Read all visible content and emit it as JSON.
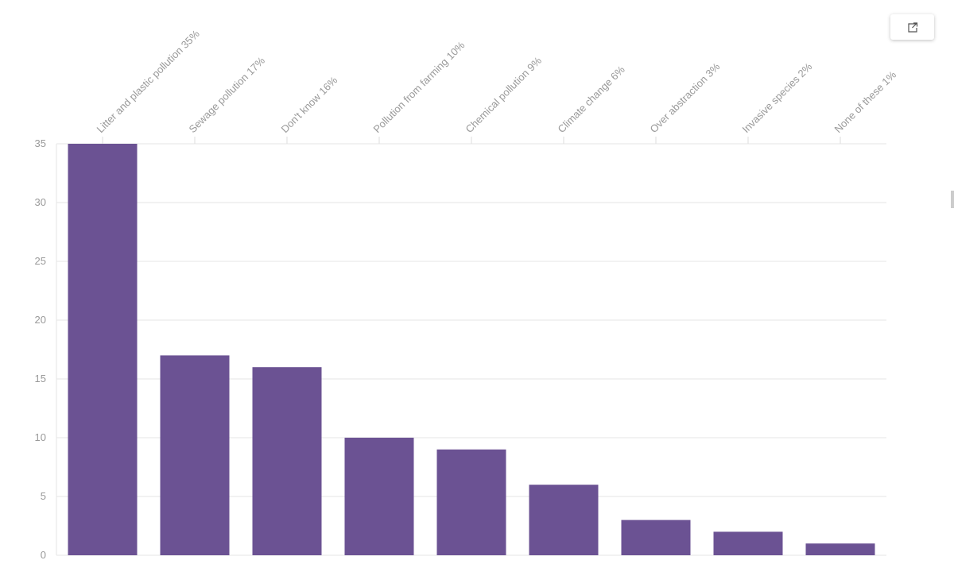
{
  "chart_data": {
    "type": "bar",
    "categories": [
      "Litter and plastic pollution 35%",
      "Sewage pollution 17%",
      "Don't know 16%",
      "Pollution from farming 10%",
      "Chemical pollution 9%",
      "Climate change 6%",
      "Over abstraction 3%",
      "Invasive species 2%",
      "None of these 1%"
    ],
    "values": [
      35,
      17,
      16,
      10,
      9,
      6,
      3,
      2,
      1
    ],
    "color": "#6b5293",
    "ylim": [
      0,
      35
    ],
    "yticks": [
      0,
      5,
      10,
      15,
      20,
      25,
      30,
      35
    ],
    "grid": true
  }
}
